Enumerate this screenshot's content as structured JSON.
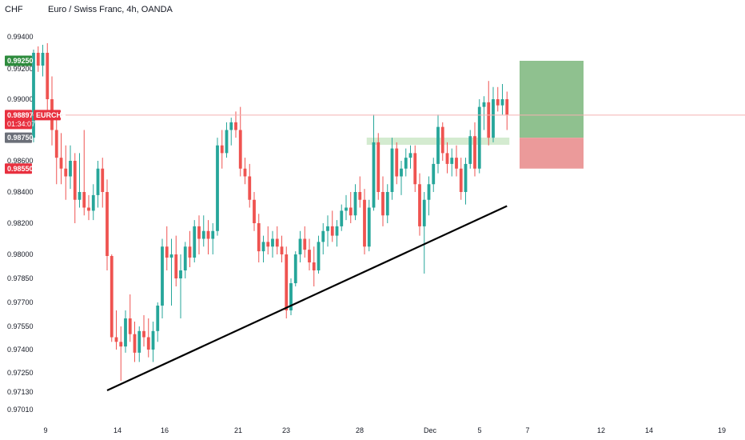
{
  "header": {
    "title": "Euro / Swiss Franc, 4h, OANDA",
    "currency": "CHF"
  },
  "price_badges": {
    "current": {
      "value": "0.98897",
      "symbol": "EURCHF",
      "countdown": "01:34:07"
    },
    "target": "0.99250",
    "entry": "0.98750",
    "stop": "0.98550"
  },
  "colors": {
    "bull": "#26a69a",
    "bear": "#ef5350",
    "target_zone": "#8fc18f",
    "stop_zone": "#eb9a9a",
    "target_badge": "#2e8b3d",
    "stop_badge": "#e8303f",
    "entry_badge": "#6b6f78",
    "current_line": "#f5b0b0",
    "zone_band": "#cde8c8",
    "trendline": "#000000"
  },
  "chart_data": {
    "type": "candlestick",
    "symbol": "EURCHF",
    "timeframe": "4h",
    "y_ticks": [
      "0.99400",
      "0.99200",
      "0.99000",
      "0.98600",
      "0.98400",
      "0.98200",
      "0.98000",
      "0.97850",
      "0.97700",
      "0.97550",
      "0.97400",
      "0.97250",
      "0.97130",
      "0.97010"
    ],
    "x_ticks": [
      "9",
      "14",
      "16",
      "21",
      "23",
      "28",
      "Dec",
      "5",
      "7",
      "12",
      "14",
      "19"
    ],
    "ohlc": [
      [
        0.9875,
        0.9932,
        0.9872,
        0.993
      ],
      [
        0.993,
        0.9934,
        0.9918,
        0.9922
      ],
      [
        0.9922,
        0.9935,
        0.9915,
        0.993
      ],
      [
        0.993,
        0.9936,
        0.989,
        0.99
      ],
      [
        0.99,
        0.9915,
        0.987,
        0.988
      ],
      [
        0.988,
        0.989,
        0.9845,
        0.9862
      ],
      [
        0.9862,
        0.9878,
        0.9845,
        0.9855
      ],
      [
        0.9855,
        0.987,
        0.9835,
        0.985
      ],
      [
        0.985,
        0.987,
        0.9842,
        0.986
      ],
      [
        0.986,
        0.9865,
        0.982,
        0.9835
      ],
      [
        0.9835,
        0.9865,
        0.983,
        0.984
      ],
      [
        0.984,
        0.988,
        0.9825,
        0.983
      ],
      [
        0.983,
        0.9838,
        0.9822,
        0.9828
      ],
      [
        0.9828,
        0.9845,
        0.9822,
        0.9838
      ],
      [
        0.9838,
        0.986,
        0.983,
        0.9855
      ],
      [
        0.9855,
        0.9862,
        0.983,
        0.984
      ],
      [
        0.984,
        0.9848,
        0.979,
        0.9799
      ],
      [
        0.9799,
        0.98,
        0.9745,
        0.9748
      ],
      [
        0.9748,
        0.9765,
        0.974,
        0.9745
      ],
      [
        0.9745,
        0.9755,
        0.972,
        0.9742
      ],
      [
        0.9742,
        0.9765,
        0.9738,
        0.976
      ],
      [
        0.976,
        0.9775,
        0.9745,
        0.975
      ],
      [
        0.975,
        0.9758,
        0.9732,
        0.9738
      ],
      [
        0.9738,
        0.9755,
        0.9732,
        0.9752
      ],
      [
        0.9752,
        0.9762,
        0.9742,
        0.9748
      ],
      [
        0.9748,
        0.976,
        0.9735,
        0.974
      ],
      [
        0.974,
        0.9758,
        0.9732,
        0.9752
      ],
      [
        0.9752,
        0.977,
        0.9745,
        0.9768
      ],
      [
        0.9768,
        0.981,
        0.976,
        0.9805
      ],
      [
        0.9805,
        0.9818,
        0.979,
        0.9798
      ],
      [
        0.9798,
        0.981,
        0.9768,
        0.98
      ],
      [
        0.98,
        0.9812,
        0.978,
        0.9785
      ],
      [
        0.9785,
        0.98,
        0.976,
        0.979
      ],
      [
        0.979,
        0.9808,
        0.9785,
        0.9805
      ],
      [
        0.9805,
        0.9815,
        0.9792,
        0.9798
      ],
      [
        0.9798,
        0.9822,
        0.9795,
        0.9818
      ],
      [
        0.9818,
        0.9825,
        0.98,
        0.981
      ],
      [
        0.981,
        0.9825,
        0.9805,
        0.9815
      ],
      [
        0.9815,
        0.9822,
        0.98,
        0.981
      ],
      [
        0.981,
        0.982,
        0.98,
        0.9815
      ],
      [
        0.9815,
        0.9875,
        0.9812,
        0.987
      ],
      [
        0.987,
        0.988,
        0.9855,
        0.9865
      ],
      [
        0.9865,
        0.9885,
        0.9862,
        0.988
      ],
      [
        0.988,
        0.9888,
        0.987,
        0.9885
      ],
      [
        0.9885,
        0.9892,
        0.9875,
        0.988
      ],
      [
        0.988,
        0.9895,
        0.985,
        0.9855
      ],
      [
        0.9855,
        0.9862,
        0.9845,
        0.985
      ],
      [
        0.985,
        0.9858,
        0.983,
        0.9835
      ],
      [
        0.9835,
        0.984,
        0.9815,
        0.982
      ],
      [
        0.982,
        0.9826,
        0.9795,
        0.9802
      ],
      [
        0.9802,
        0.9812,
        0.9795,
        0.9808
      ],
      [
        0.9808,
        0.9818,
        0.98,
        0.9805
      ],
      [
        0.9805,
        0.9815,
        0.9798,
        0.981
      ],
      [
        0.981,
        0.9818,
        0.98,
        0.9805
      ],
      [
        0.9805,
        0.9812,
        0.9795,
        0.98
      ],
      [
        0.98,
        0.9805,
        0.976,
        0.9765
      ],
      [
        0.9765,
        0.9785,
        0.9762,
        0.9782
      ],
      [
        0.9782,
        0.9802,
        0.978,
        0.98
      ],
      [
        0.98,
        0.9815,
        0.9795,
        0.981
      ],
      [
        0.981,
        0.9818,
        0.9798,
        0.9803
      ],
      [
        0.9803,
        0.981,
        0.979,
        0.9795
      ],
      [
        0.9795,
        0.9805,
        0.978,
        0.979
      ],
      [
        0.979,
        0.9812,
        0.9788,
        0.9808
      ],
      [
        0.9808,
        0.982,
        0.98,
        0.9815
      ],
      [
        0.9815,
        0.9825,
        0.9805,
        0.9818
      ],
      [
        0.9818,
        0.9828,
        0.9808,
        0.9812
      ],
      [
        0.9812,
        0.9822,
        0.9805,
        0.9818
      ],
      [
        0.9818,
        0.9832,
        0.9815,
        0.9828
      ],
      [
        0.9828,
        0.9838,
        0.9822,
        0.983
      ],
      [
        0.983,
        0.984,
        0.982,
        0.9825
      ],
      [
        0.9825,
        0.9845,
        0.9822,
        0.984
      ],
      [
        0.984,
        0.985,
        0.983,
        0.9835
      ],
      [
        0.9835,
        0.9842,
        0.98,
        0.9805
      ],
      [
        0.9805,
        0.9835,
        0.9802,
        0.983
      ],
      [
        0.983,
        0.989,
        0.9828,
        0.9872
      ],
      [
        0.9872,
        0.9878,
        0.9835,
        0.984
      ],
      [
        0.984,
        0.985,
        0.9818,
        0.9825
      ],
      [
        0.9825,
        0.9845,
        0.982,
        0.984
      ],
      [
        0.984,
        0.9875,
        0.9835,
        0.9868
      ],
      [
        0.9868,
        0.9872,
        0.9845,
        0.985
      ],
      [
        0.985,
        0.986,
        0.9838,
        0.9855
      ],
      [
        0.9855,
        0.9868,
        0.985,
        0.9862
      ],
      [
        0.9862,
        0.987,
        0.9855,
        0.9865
      ],
      [
        0.9865,
        0.987,
        0.984,
        0.9845
      ],
      [
        0.9845,
        0.9852,
        0.9812,
        0.9818
      ],
      [
        0.9818,
        0.984,
        0.9788,
        0.9835
      ],
      [
        0.9835,
        0.985,
        0.9825,
        0.9845
      ],
      [
        0.9845,
        0.9862,
        0.984,
        0.9858
      ],
      [
        0.9858,
        0.989,
        0.9852,
        0.9882
      ],
      [
        0.9882,
        0.9885,
        0.986,
        0.9865
      ],
      [
        0.9865,
        0.9872,
        0.9852,
        0.9858
      ],
      [
        0.9858,
        0.9868,
        0.985,
        0.9862
      ],
      [
        0.9862,
        0.987,
        0.985,
        0.9855
      ],
      [
        0.9855,
        0.9862,
        0.9835,
        0.984
      ],
      [
        0.984,
        0.9862,
        0.9832,
        0.9858
      ],
      [
        0.9858,
        0.988,
        0.9855,
        0.9876
      ],
      [
        0.9876,
        0.9885,
        0.985,
        0.9855
      ],
      [
        0.9855,
        0.99,
        0.9852,
        0.9895
      ],
      [
        0.9895,
        0.9902,
        0.988,
        0.9898
      ],
      [
        0.9898,
        0.9912,
        0.987,
        0.9875
      ],
      [
        0.9875,
        0.9908,
        0.9872,
        0.99
      ],
      [
        0.99,
        0.9908,
        0.9892,
        0.9896
      ],
      [
        0.9896,
        0.991,
        0.989,
        0.99
      ],
      [
        0.99,
        0.9905,
        0.988,
        0.989
      ]
    ],
    "trendline": {
      "from": {
        "bar": 16,
        "price": 0.9714
      },
      "to": {
        "bar": 103,
        "price": 0.9831
      }
    },
    "support_zone": {
      "from_bar": 73,
      "to_bar": 103,
      "top": 0.9876,
      "bottom": 0.98728
    },
    "target_zone": {
      "top": 0.9925,
      "bottom": 0.9875
    },
    "stop_zone": {
      "top": 0.9875,
      "bottom": 0.9855
    }
  }
}
